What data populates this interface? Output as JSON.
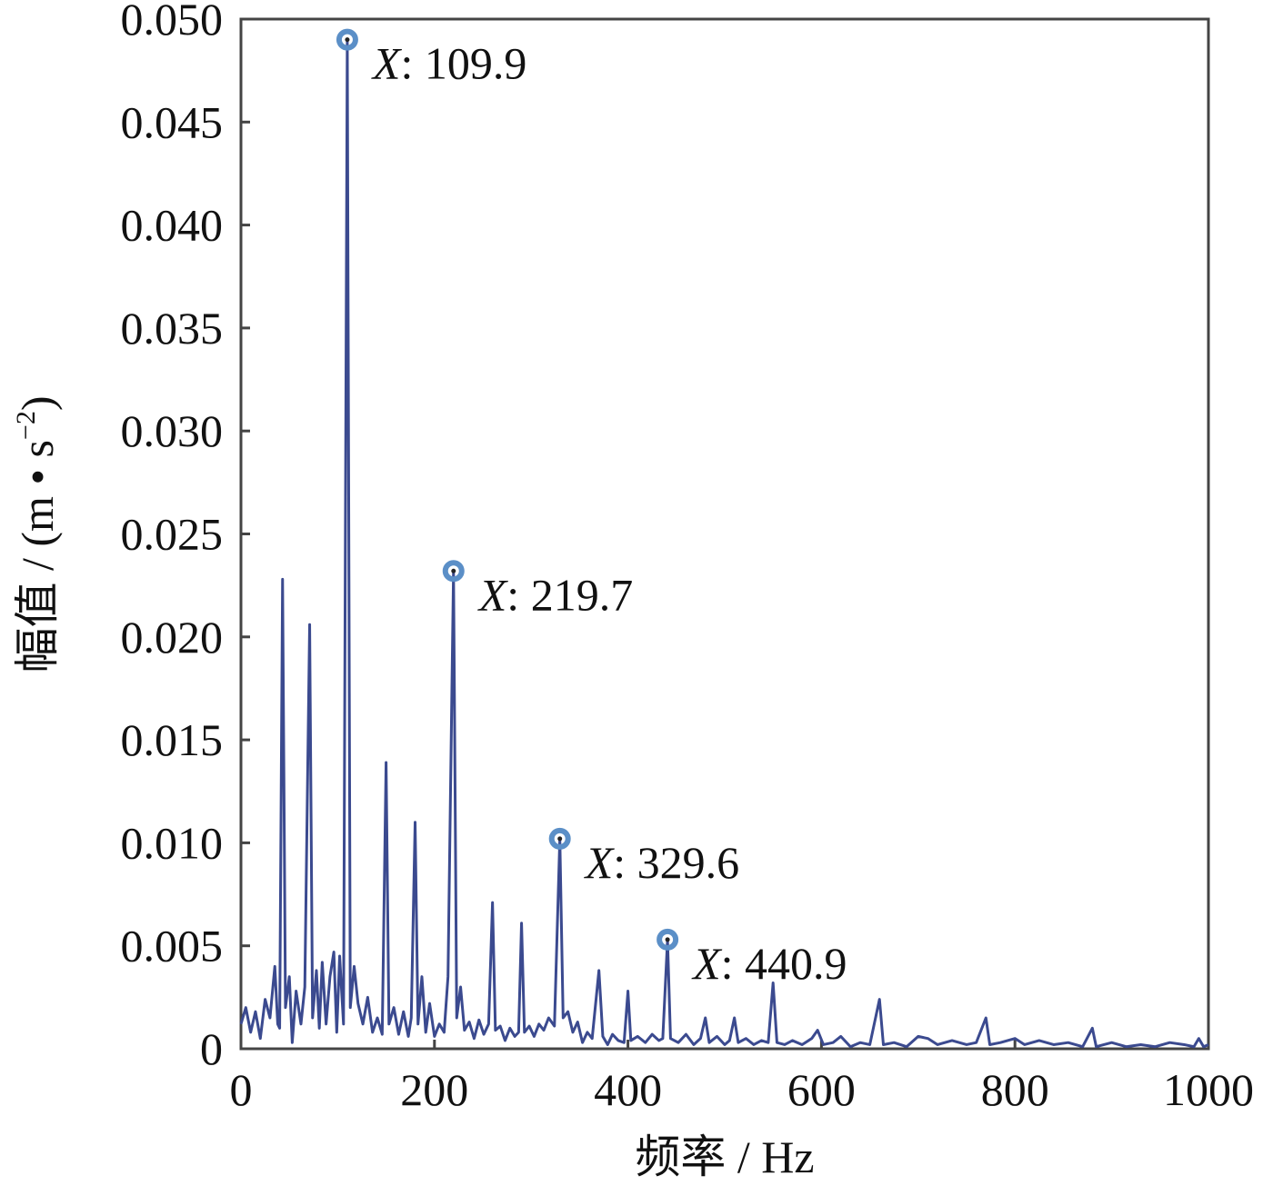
{
  "chart_data": {
    "type": "line",
    "xlabel": "频率 / Hz",
    "ylabel": [
      "幅值 / (m • s",
      "−2",
      ")"
    ],
    "x": [
      0,
      5,
      10,
      15,
      20,
      25,
      30,
      35,
      38,
      40,
      43,
      46,
      50,
      53,
      57,
      62,
      66,
      71,
      74,
      78,
      81,
      84,
      88,
      92,
      96,
      99,
      102,
      106,
      109.9,
      113,
      117,
      121,
      126,
      131,
      136,
      141,
      146,
      150,
      153,
      158,
      163,
      168,
      173,
      176,
      180,
      183,
      187,
      191,
      195,
      200,
      205,
      210,
      214,
      219.7,
      223,
      227,
      231,
      236,
      241,
      246,
      251,
      256,
      260,
      263,
      268,
      273,
      278,
      283,
      287,
      290,
      293,
      298,
      303,
      308,
      313,
      318,
      324,
      329.6,
      333,
      338,
      343,
      348,
      353,
      358,
      363,
      370,
      374,
      379,
      384,
      390,
      396,
      400,
      403,
      410,
      418,
      425,
      432,
      436,
      440.9,
      444,
      452,
      460,
      468,
      475,
      480,
      484,
      492,
      500,
      505,
      510,
      514,
      522,
      530,
      538,
      545,
      550,
      554,
      562,
      570,
      580,
      590,
      596,
      602,
      612,
      620,
      630,
      640,
      650,
      660,
      664,
      675,
      688,
      700,
      710,
      720,
      735,
      750,
      760,
      770,
      774,
      785,
      800,
      810,
      825,
      840,
      855,
      870,
      880,
      884,
      900,
      915,
      930,
      945,
      960,
      975,
      985,
      990,
      995,
      1000
    ],
    "series": [
      {
        "color": "#3b4a8f",
        "values": [
          0.0012,
          0.002,
          0.0008,
          0.0018,
          0.0005,
          0.0024,
          0.0015,
          0.004,
          0.0012,
          0.001,
          0.0228,
          0.002,
          0.0035,
          0.0003,
          0.0028,
          0.0012,
          0.003,
          0.0206,
          0.0015,
          0.0038,
          0.001,
          0.0042,
          0.0012,
          0.0035,
          0.0047,
          0.0008,
          0.0045,
          0.0012,
          0.049,
          0.002,
          0.004,
          0.0022,
          0.0012,
          0.0025,
          0.0008,
          0.0015,
          0.0007,
          0.0139,
          0.0012,
          0.002,
          0.0007,
          0.0018,
          0.0006,
          0.0015,
          0.011,
          0.0012,
          0.0035,
          0.0008,
          0.0022,
          0.0006,
          0.0012,
          0.0008,
          0.0035,
          0.0232,
          0.0015,
          0.003,
          0.0009,
          0.0013,
          0.0005,
          0.0014,
          0.0007,
          0.0012,
          0.0071,
          0.0009,
          0.0011,
          0.0004,
          0.001,
          0.0006,
          0.0008,
          0.0061,
          0.0008,
          0.0011,
          0.0006,
          0.0012,
          0.0009,
          0.0015,
          0.0011,
          0.0102,
          0.0015,
          0.0018,
          0.0008,
          0.0013,
          0.0003,
          0.0008,
          0.0005,
          0.0038,
          0.0006,
          0.0002,
          0.0007,
          0.0004,
          0.0003,
          0.0028,
          0.0004,
          0.0006,
          0.0003,
          0.0007,
          0.0004,
          0.0005,
          0.0053,
          0.0005,
          0.0003,
          0.0007,
          0.0002,
          0.0005,
          0.0015,
          0.0003,
          0.0006,
          0.0002,
          0.0004,
          0.0015,
          0.0003,
          0.0005,
          0.0002,
          0.0004,
          0.0003,
          0.0032,
          0.0003,
          0.0002,
          0.0004,
          0.0002,
          0.0005,
          0.0009,
          0.0002,
          0.0003,
          0.0006,
          0.0001,
          0.0003,
          0.0002,
          0.0024,
          0.0002,
          0.0003,
          0.0001,
          0.0006,
          0.0005,
          0.0002,
          0.0004,
          0.0002,
          0.0003,
          0.0015,
          0.0002,
          0.0003,
          0.0005,
          0.0002,
          0.0004,
          0.0002,
          0.0003,
          0.0001,
          0.001,
          0.0001,
          0.0003,
          0.0001,
          0.0002,
          0.0001,
          0.0003,
          0.0002,
          0.0001,
          0.0005,
          0.0001,
          0.0002
        ]
      }
    ],
    "annotations": [
      {
        "x": 109.9,
        "y": 0.049,
        "var": "X",
        "text": ": 109.9"
      },
      {
        "x": 219.7,
        "y": 0.0232,
        "var": "X",
        "text": ": 219.7"
      },
      {
        "x": 329.6,
        "y": 0.0102,
        "var": "X",
        "text": ": 329.6"
      },
      {
        "x": 440.9,
        "y": 0.0053,
        "var": "X",
        "text": ": 440.9"
      }
    ],
    "marker_color": "#5b8fc7",
    "xlim": [
      0,
      1000
    ],
    "xticks": [
      0,
      200,
      400,
      600,
      800,
      1000
    ],
    "ylim": [
      0,
      0.05
    ],
    "yticks": [
      0,
      0.005,
      {
        "value": 0.01,
        "label": "0.010"
      },
      0.015,
      {
        "value": 0.02,
        "label": "0.020"
      },
      0.025,
      {
        "value": 0.03,
        "label": "0.030"
      },
      0.035,
      {
        "value": 0.04,
        "label": "0.040"
      },
      0.045,
      {
        "value": 0.05,
        "label": "0.050"
      }
    ],
    "grid": false
  }
}
